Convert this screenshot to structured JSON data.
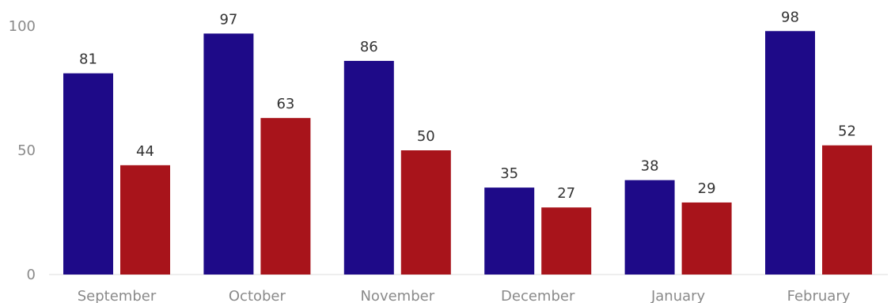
{
  "chart_data": {
    "type": "bar",
    "categories": [
      "September",
      "October",
      "November",
      "December",
      "January",
      "February"
    ],
    "series": [
      {
        "values": [
          81,
          97,
          86,
          35,
          38,
          98
        ],
        "color": "#1e0a88"
      },
      {
        "values": [
          44,
          63,
          50,
          27,
          29,
          52
        ],
        "color": "#a8141b"
      }
    ],
    "ylim": [
      0,
      100
    ],
    "yticks": [
      0,
      50,
      100
    ],
    "grid": false,
    "legend": "none",
    "axis_color": "#dddddd",
    "tick_color": "#8a8a8a",
    "label_color": "#333333"
  }
}
